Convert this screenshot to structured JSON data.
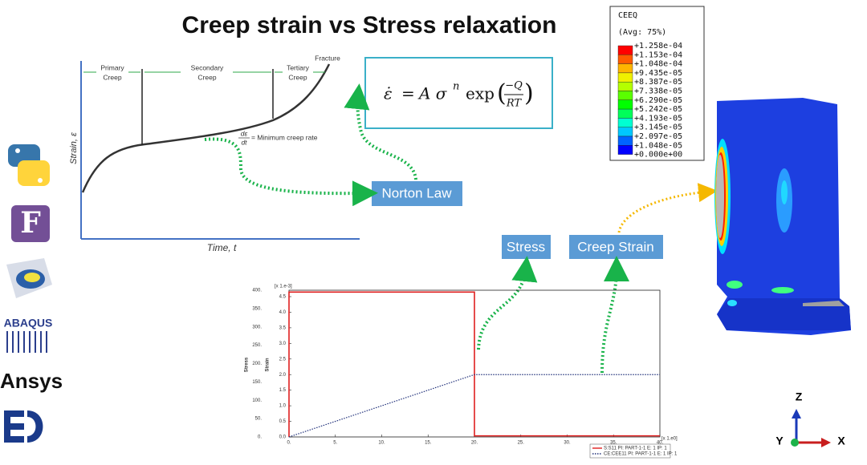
{
  "title": "Creep strain vs Stress relaxation",
  "creep_curve": {
    "y_label": "Strain, ε",
    "x_label": "Time, t",
    "stages": [
      [
        "Primary",
        "Creep"
      ],
      [
        "Secondary",
        "Creep"
      ],
      [
        "Tertiary",
        "Creep"
      ]
    ],
    "fracture": "Fracture",
    "rate_num": "dε",
    "rate_den": "dt",
    "rate_label": "= Minimum creep rate"
  },
  "equation": {
    "lhs": "ε̇",
    "eq": "=",
    "coef": "A σ",
    "power": "n",
    "func": "exp",
    "num": "−Q",
    "den": "RT"
  },
  "boxes": {
    "norton": "Norton Law",
    "stress": "Stress",
    "creep_strain": "Creep Strain"
  },
  "contour_legend": {
    "title": "CEEQ",
    "subtitle": "(Avg: 75%)",
    "levels": [
      "+1.258e-04",
      "+1.153e-04",
      "+1.048e-04",
      "+9.435e-05",
      "+8.387e-05",
      "+7.338e-05",
      "+6.290e-05",
      "+5.242e-05",
      "+4.193e-05",
      "+3.145e-05",
      "+2.097e-05",
      "+1.048e-05",
      "+0.000e+00"
    ],
    "colors": [
      "#ff0000",
      "#ff5a00",
      "#ffb400",
      "#f0f000",
      "#b4ff00",
      "#5aff00",
      "#00ff00",
      "#00ff5a",
      "#00ffd2",
      "#00c8ff",
      "#0064ff",
      "#0000ff"
    ]
  },
  "logos": {
    "fortran": "F",
    "abaqus": "ABAQUS",
    "ansys": "Ansys"
  },
  "triad": {
    "z": "Z",
    "y": "Y",
    "x": "X"
  },
  "plot": {
    "y_label": "Stress",
    "y2_label": "Strain",
    "y2_scale": "[x 1.e-3]",
    "x_scale": "[x 1.e0]",
    "xlim": [
      0,
      40
    ],
    "ylim": [
      0,
      400
    ],
    "y2lim": [
      0,
      4.5
    ],
    "xticks": [
      "0.",
      "5.",
      "10.",
      "15.",
      "20.",
      "25.",
      "30.",
      "35.",
      "40."
    ],
    "yticks": [
      "0.",
      "50.",
      "100.",
      "150.",
      "200.",
      "250.",
      "300.",
      "350.",
      "400."
    ],
    "y2ticks": [
      "0.0",
      "0.5",
      "1.0",
      "1.5",
      "2.0",
      "2.5",
      "3.0",
      "3.5",
      "4.0",
      "4.5"
    ],
    "series": [
      {
        "name": "S:S11 PI: PART-1-1 E: 1 IP: 1",
        "color": "#e02020",
        "x": [
          0,
          0,
          20,
          20,
          40
        ],
        "values": [
          0,
          395,
          395,
          3,
          3
        ]
      },
      {
        "name": "CE:CEE11 PI: PART-1-1 E: 1 IP: 1",
        "color": "#20307a",
        "axis": "y2",
        "x": [
          0,
          20,
          40
        ],
        "values": [
          0,
          2.0,
          2.0
        ]
      }
    ]
  }
}
